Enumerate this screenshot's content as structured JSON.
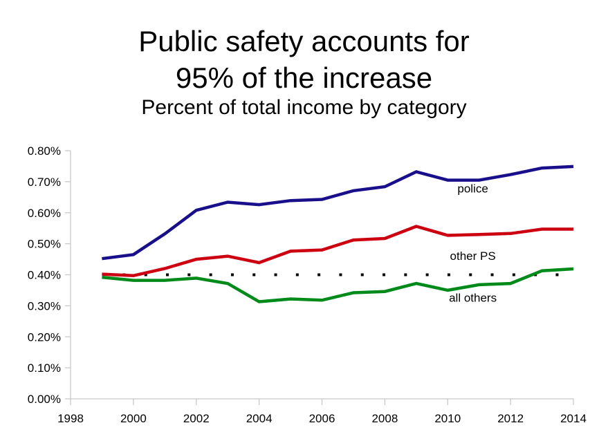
{
  "chart_data": {
    "type": "line",
    "title": "Public safety accounts for 95% of the increase",
    "title_lines": [
      "Public safety accounts for",
      "95% of the increase"
    ],
    "subtitle": "Percent of total income by category",
    "xlabel": "",
    "ylabel": "",
    "xlim": [
      1998,
      2014
    ],
    "ylim": [
      0,
      0.8
    ],
    "x_ticks": [
      1998,
      2000,
      2002,
      2004,
      2006,
      2008,
      2010,
      2012,
      2014
    ],
    "x_tick_labels": [
      "1998",
      "2000",
      "2002",
      "2004",
      "2006",
      "2008",
      "2010",
      "2012",
      "2014"
    ],
    "y_ticks": [
      0,
      0.1,
      0.2,
      0.3,
      0.4,
      0.5,
      0.6,
      0.7,
      0.8
    ],
    "y_tick_labels": [
      "0.00%",
      "0.10%",
      "0.20%",
      "0.30%",
      "0.40%",
      "0.50%",
      "0.60%",
      "0.70%",
      "0.80%"
    ],
    "y_unit": "percent",
    "grid": false,
    "legend": "inline labels",
    "x": [
      1999,
      2000,
      2001,
      2002,
      2003,
      2004,
      2005,
      2006,
      2007,
      2008,
      2009,
      2010,
      2011,
      2012,
      2013,
      2014
    ],
    "series": [
      {
        "name": "police",
        "color": "#1a0f8a",
        "style": "solid",
        "label_at": [
          2010.8,
          0.665
        ],
        "values": [
          0.452,
          0.465,
          0.532,
          0.608,
          0.634,
          0.626,
          0.639,
          0.643,
          0.671,
          0.684,
          0.732,
          0.705,
          0.705,
          0.723,
          0.744,
          0.749
        ]
      },
      {
        "name": "other PS",
        "color": "#cc0011",
        "style": "solid",
        "label_at": [
          2010.8,
          0.448
        ],
        "values": [
          0.402,
          0.397,
          0.42,
          0.45,
          0.46,
          0.439,
          0.476,
          0.48,
          0.512,
          0.517,
          0.556,
          0.527,
          0.53,
          0.533,
          0.547,
          0.547
        ]
      },
      {
        "name": "all others",
        "color": "#008a1a",
        "style": "solid",
        "label_at": [
          2010.8,
          0.313
        ],
        "values": [
          0.392,
          0.382,
          0.382,
          0.389,
          0.372,
          0.313,
          0.322,
          0.318,
          0.342,
          0.346,
          0.372,
          0.35,
          0.368,
          0.372,
          0.413,
          0.419
        ]
      }
    ],
    "reference_lines": [
      {
        "name": "baseline 0.40%",
        "y": 0.4,
        "x_range": [
          1999,
          2014
        ],
        "color": "#000000",
        "style": "dotted"
      }
    ]
  }
}
